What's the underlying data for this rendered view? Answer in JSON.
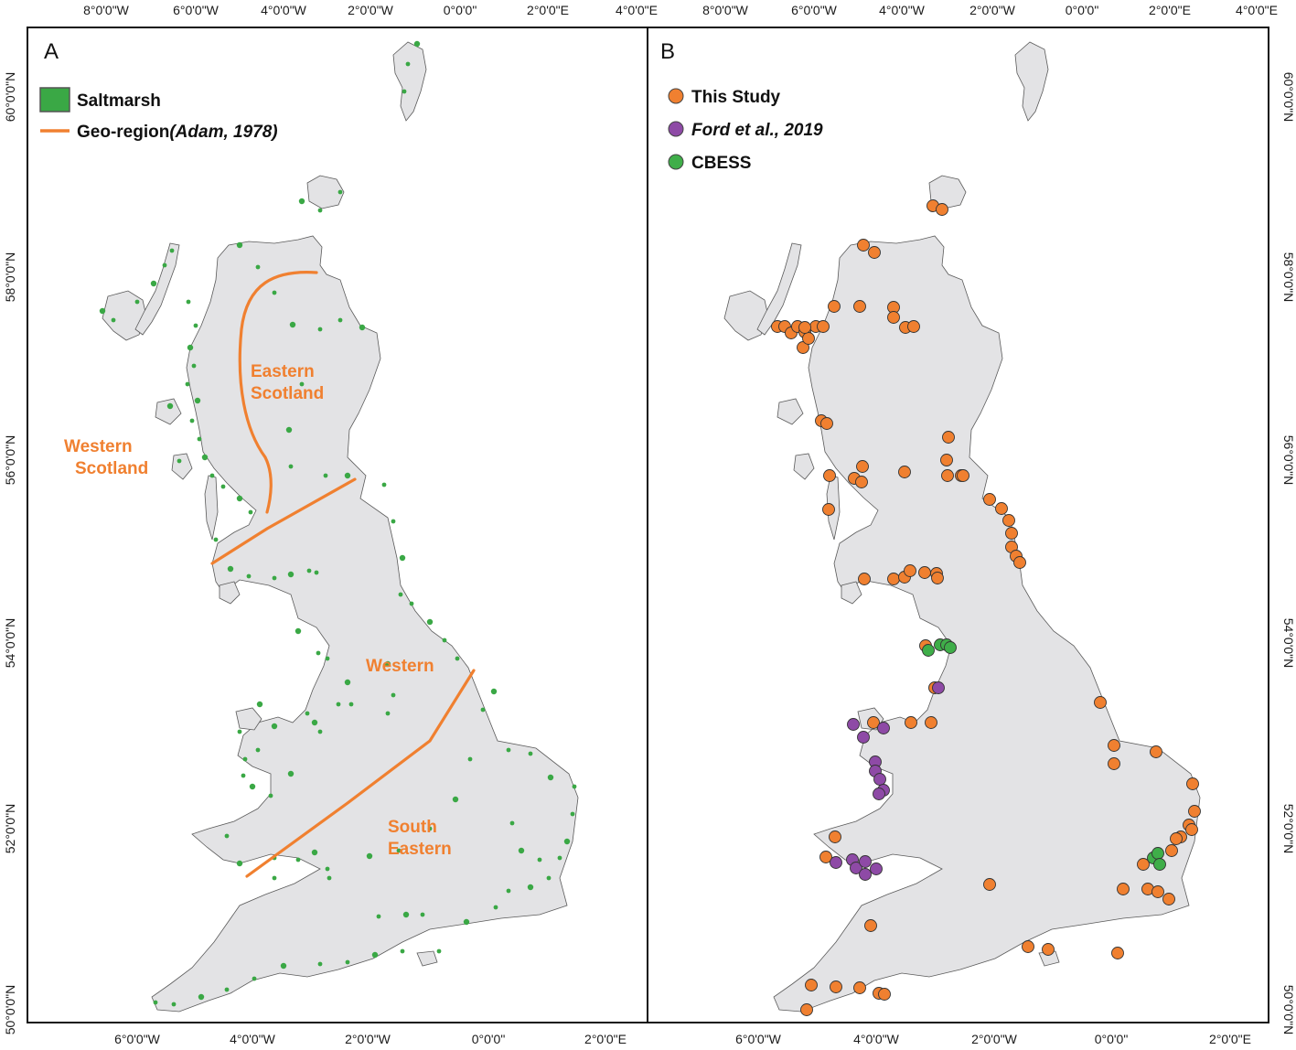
{
  "figure": {
    "panel_a": {
      "letter": "A",
      "top_ticks": [
        "8°0'0\"W",
        "6°0'0\"W",
        "4°0'0\"W",
        "2°0'0\"W",
        "0°0'0\"",
        "2°0'0\"E",
        "4°0'0\"E"
      ],
      "bottom_ticks": [
        "6°0'0\"W",
        "4°0'0\"W",
        "2°0'0\"W",
        "0°0'0\"",
        "2°0'0\"E"
      ],
      "left_ticks": [
        "60°0'0\"N",
        "58°0'0\"N",
        "56°0'0\"N",
        "54°0'0\"N",
        "52°0'0\"N",
        "50°0'0\"N"
      ],
      "legend": {
        "saltmarsh": "Saltmarsh",
        "georegion": "Geo-region",
        "georegion_citation": "(Adam, 1978)"
      },
      "regions": {
        "eastern_scotland_1": "Eastern",
        "eastern_scotland_2": "Scotland",
        "western_scotland_1": "Western",
        "western_scotland_2": "Scotland",
        "western": "Western",
        "south_eastern_1": "South",
        "south_eastern_2": "Eastern"
      },
      "colors": {
        "saltmarsh": "#3aa845",
        "georegion_line": "#f08030"
      }
    },
    "panel_b": {
      "letter": "B",
      "top_ticks": [
        "8°0'0\"W",
        "6°0'0\"W",
        "4°0'0\"W",
        "2°0'0\"W",
        "0°0'0\"",
        "2°0'0\"E",
        "4°0'0\"E"
      ],
      "bottom_ticks": [
        "6°0'0\"W",
        "4°0'0\"W",
        "2°0'0\"W",
        "0°0'0\"",
        "2°0'0\"E"
      ],
      "right_ticks": [
        "60°0'0\"N",
        "58°0'0\"N",
        "56°0'0\"N",
        "54°0'0\"N",
        "52°0'0\"N",
        "50°0'0\"N"
      ],
      "legend": {
        "this_study": "This Study",
        "ford": "Ford et al., 2019",
        "cbess": "CBESS"
      },
      "colors": {
        "this_study": "#f08030",
        "ford": "#8e4aa6",
        "cbess": "#3fae49"
      }
    }
  }
}
